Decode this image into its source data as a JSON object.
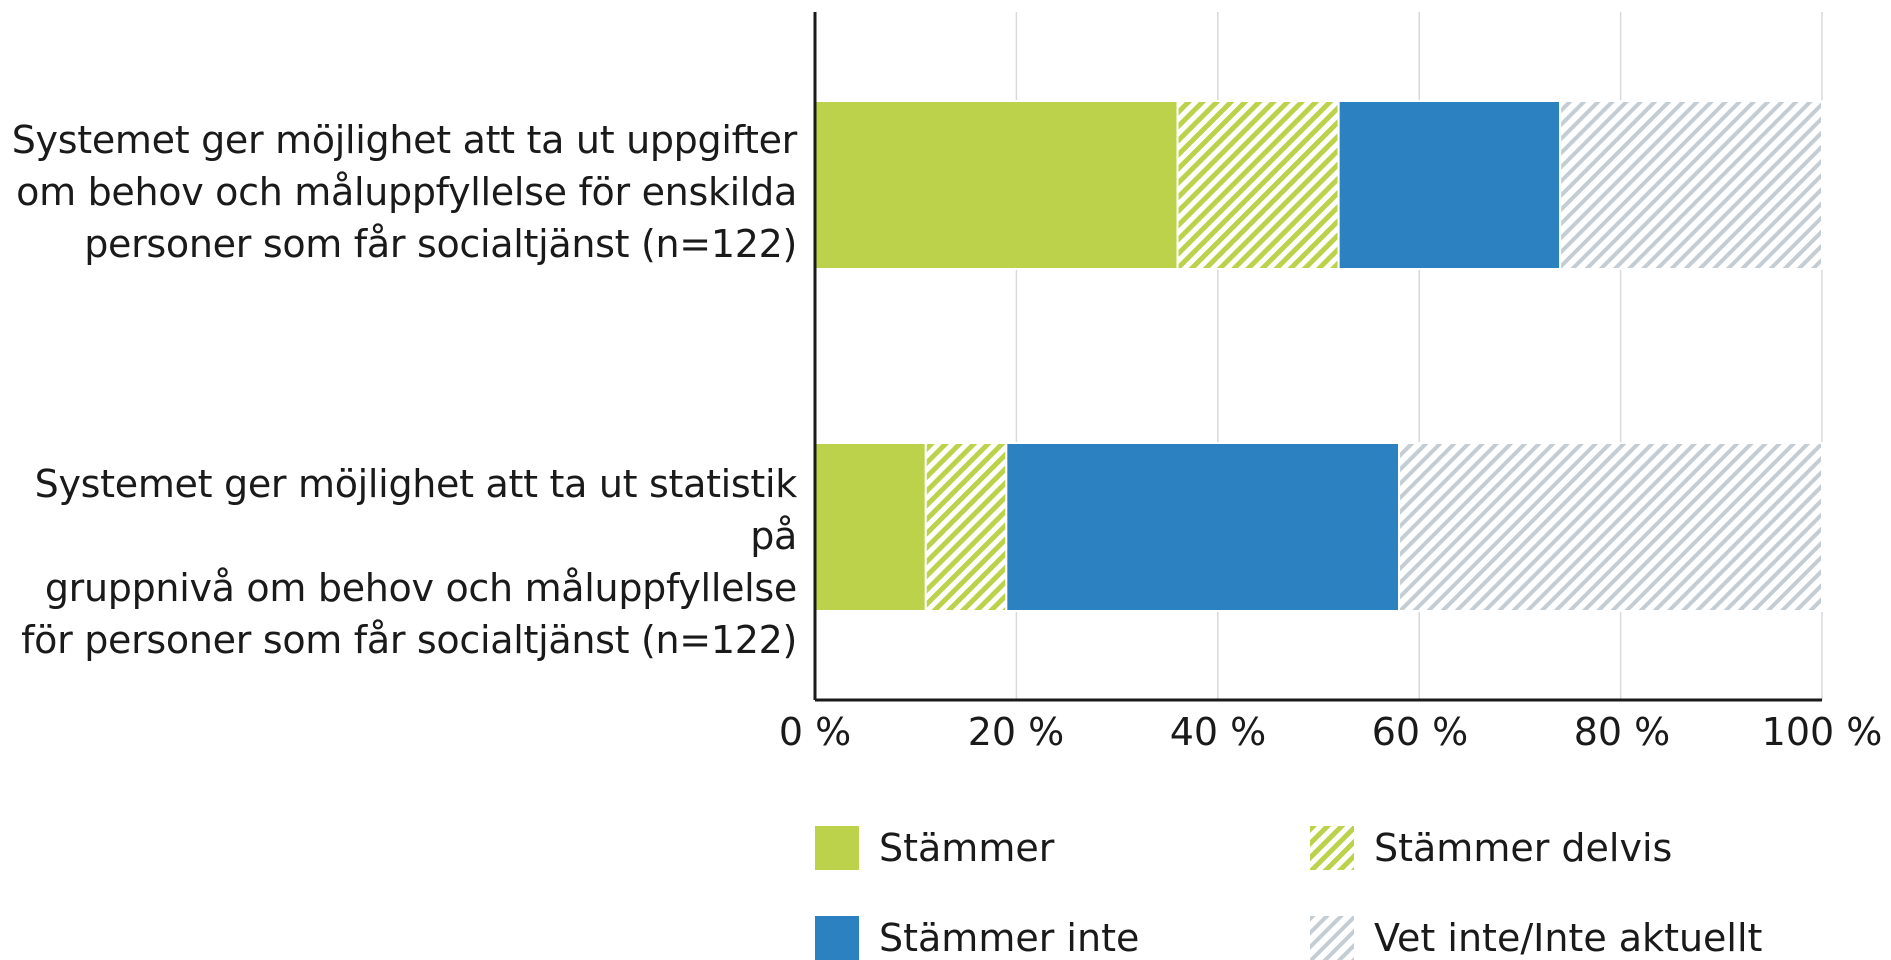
{
  "chart_data": {
    "type": "bar",
    "orientation": "horizontal",
    "stacked": true,
    "categories": [
      "Systemet ger möjlighet att ta ut uppgifter om behov och måluppfyllelse för enskilda personer som får socialtjänst (n=122)",
      "Systemet ger möjlighet att ta ut statistik på gruppnivå om behov och måluppfyllelse för personer som får socialtjänst (n=122)"
    ],
    "category_lines": [
      [
        "Systemet ger möjlighet att ta ut uppgifter",
        "om behov och måluppfyllelse för enskilda",
        "personer som får socialtjänst (n=122)"
      ],
      [
        "Systemet ger möjlighet att ta ut statistik på",
        "gruppnivå om behov och måluppfyllelse",
        "för personer som får socialtjänst (n=122)"
      ]
    ],
    "series": [
      {
        "name": "Stämmer",
        "values": [
          36,
          11
        ],
        "color": "#bcd24b",
        "pattern": "solid"
      },
      {
        "name": "Stämmer delvis",
        "values": [
          16,
          8
        ],
        "color": "#bcd24b",
        "pattern": "hatch"
      },
      {
        "name": "Stämmer inte",
        "values": [
          22,
          39
        ],
        "color": "#2c82c0",
        "pattern": "solid"
      },
      {
        "name": "Vet inte/Inte aktuellt",
        "values": [
          26,
          42
        ],
        "color": "#c3cdd3",
        "pattern": "hatch"
      }
    ],
    "xlim": [
      0,
      100
    ],
    "x_ticks": [
      "0 %",
      "20 %",
      "40 %",
      "60 %",
      "80 %",
      "100 %"
    ],
    "x_tick_values": [
      0,
      20,
      40,
      60,
      80,
      100
    ],
    "grid": true,
    "legend_position": "bottom"
  }
}
